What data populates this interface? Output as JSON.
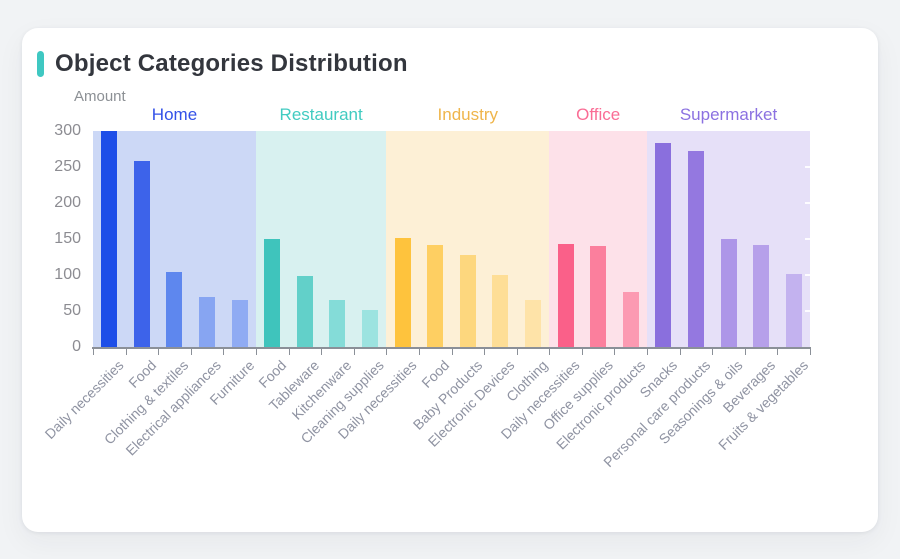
{
  "page": {
    "background": "#f1f3f5"
  },
  "card": {
    "title": "Object Categories Distribution",
    "accent_color": "#3fc8c2",
    "title_color": "#33363d"
  },
  "chart_data": {
    "type": "bar",
    "title": "Object Categories Distribution",
    "xlabel": "",
    "ylabel": "Amount",
    "ylim": [
      0,
      300
    ],
    "y_ticks": [
      0,
      50,
      100,
      150,
      200,
      250,
      300
    ],
    "grid": false,
    "legend_position": "none",
    "group_labels_position": "top",
    "style": {
      "axis_line_color": "#8b9098",
      "tick_color": "#8b9098",
      "y_tick_text_color": "#8c8c92",
      "x_label_text_color": "#8f93a2",
      "y_title_color": "#8c9095",
      "right_tick_color": "rgba(255,255,255,0.9)"
    },
    "groups": [
      {
        "name": "Home",
        "label_color": "#3351e8",
        "band_color": "#ccd8f6",
        "bars": [
          {
            "category": "Daily necessities",
            "value": 300,
            "color": "#1d4ee8"
          },
          {
            "category": "Food",
            "value": 258,
            "color": "#3d63ea"
          },
          {
            "category": "Clothing & textiles",
            "value": 104,
            "color": "#5e87ee"
          },
          {
            "category": "Electrical appliances",
            "value": 70,
            "color": "#87a5f2"
          },
          {
            "category": "Furniture",
            "value": 65,
            "color": "#8fabf3"
          }
        ]
      },
      {
        "name": "Restaurant",
        "label_color": "#41cbc1",
        "band_color": "#d8f1f0",
        "bars": [
          {
            "category": "Food",
            "value": 150,
            "color": "#3fc4bc"
          },
          {
            "category": "Tableware",
            "value": 98,
            "color": "#62d0c9"
          },
          {
            "category": "Kitchenware",
            "value": 65,
            "color": "#84dcd8"
          },
          {
            "category": "Cleaning supplies",
            "value": 52,
            "color": "#9ce3e0"
          }
        ]
      },
      {
        "name": "Industry",
        "label_color": "#efb54b",
        "band_color": "#fdf0d6",
        "bars": [
          {
            "category": "Daily necessities",
            "value": 152,
            "color": "#fec33d"
          },
          {
            "category": "Food",
            "value": 141,
            "color": "#fecf62"
          },
          {
            "category": "Baby Products",
            "value": 128,
            "color": "#fdd77e"
          },
          {
            "category": "Electronic Devices",
            "value": 100,
            "color": "#fede96"
          },
          {
            "category": "Clothing",
            "value": 65,
            "color": "#fee3a8"
          }
        ]
      },
      {
        "name": "Office",
        "label_color": "#fa6d95",
        "band_color": "#fde1e9",
        "bars": [
          {
            "category": "Daily necessities",
            "value": 143,
            "color": "#fa6089"
          },
          {
            "category": "Office supplies",
            "value": 140,
            "color": "#fb7f9d"
          },
          {
            "category": "Electronic products",
            "value": 76,
            "color": "#fc9ab2"
          }
        ]
      },
      {
        "name": "Supermarket",
        "label_color": "#8b71e1",
        "band_color": "#e6e0f8",
        "bars": [
          {
            "category": "Snacks",
            "value": 284,
            "color": "#8a6fdd"
          },
          {
            "category": "Personal care products",
            "value": 272,
            "color": "#9478e0"
          },
          {
            "category": "Seasonings & oils",
            "value": 150,
            "color": "#ad96e8"
          },
          {
            "category": "Beverages",
            "value": 141,
            "color": "#b6a0ea"
          },
          {
            "category": "Fruits & vegetables",
            "value": 102,
            "color": "#c3b2ef"
          }
        ]
      }
    ]
  }
}
